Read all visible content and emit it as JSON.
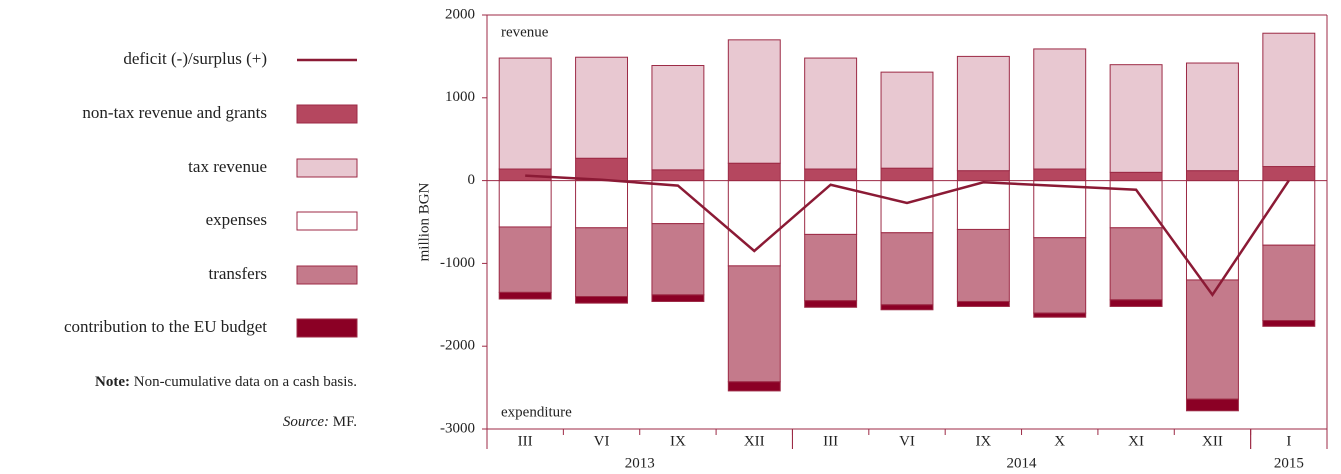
{
  "chart_data": {
    "type": "stacked_bar_line",
    "y_axis_label": "million BGN",
    "annotations": {
      "top": "revenue",
      "bottom": "expenditure"
    },
    "note_label": "Note:",
    "note": "Non-cumulative data on a cash basis.",
    "source_label": "Source:",
    "source": "MF.",
    "categories": [
      {
        "label": "III",
        "year": "2013"
      },
      {
        "label": "VI",
        "year": "2013"
      },
      {
        "label": "IX",
        "year": "2013"
      },
      {
        "label": "XII",
        "year": "2013"
      },
      {
        "label": "III",
        "year": "2014"
      },
      {
        "label": "VI",
        "year": "2014"
      },
      {
        "label": "IX",
        "year": "2014"
      },
      {
        "label": "X",
        "year": "2014"
      },
      {
        "label": "XI",
        "year": "2014"
      },
      {
        "label": "XII",
        "year": "2014"
      },
      {
        "label": "I",
        "year": "2015"
      }
    ],
    "series": [
      {
        "name": "deficit (-)/surplus (+)",
        "type": "line",
        "color": "#8b1a35",
        "values": [
          60,
          10,
          -60,
          -850,
          -50,
          -270,
          -20,
          -65,
          -110,
          -1380,
          0
        ]
      },
      {
        "name": "non-tax revenue and grants",
        "type": "bar",
        "stack": "revenue",
        "color": "#b5475f",
        "values": [
          140,
          270,
          130,
          210,
          140,
          150,
          120,
          140,
          100,
          120,
          170
        ]
      },
      {
        "name": "tax revenue",
        "type": "bar",
        "stack": "revenue",
        "color": "#e8c8d1",
        "values": [
          1340,
          1220,
          1260,
          1490,
          1340,
          1160,
          1380,
          1450,
          1300,
          1300,
          1610
        ]
      },
      {
        "name": "expenses",
        "type": "bar",
        "stack": "expenditure",
        "color": "#ffffff",
        "values": [
          -560,
          -570,
          -520,
          -1030,
          -650,
          -630,
          -590,
          -690,
          -570,
          -1200,
          -780
        ]
      },
      {
        "name": "transfers",
        "type": "bar",
        "stack": "expenditure",
        "color": "#c47a8b",
        "values": [
          -790,
          -830,
          -860,
          -1400,
          -800,
          -870,
          -870,
          -910,
          -870,
          -1440,
          -910
        ]
      },
      {
        "name": "contribution to the EU budget",
        "type": "bar",
        "stack": "expenditure",
        "color": "#8b0025",
        "values": [
          -80,
          -80,
          -80,
          -110,
          -80,
          -60,
          -60,
          -50,
          -80,
          -140,
          -70
        ]
      }
    ],
    "ylim": [
      -3000,
      2000
    ],
    "yticks": [
      2000,
      1000,
      0,
      -1000,
      -2000,
      -3000
    ],
    "axis_color": "#9c2a45"
  }
}
